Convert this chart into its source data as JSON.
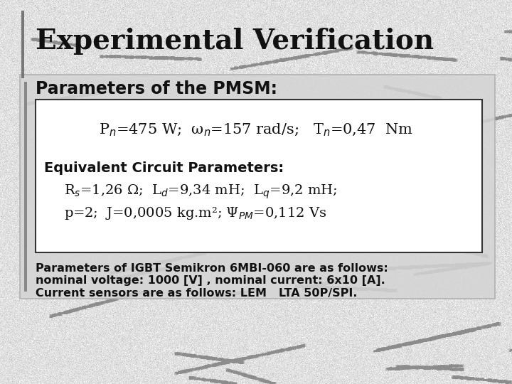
{
  "title": "Experimental Verification",
  "title_fontsize": 28,
  "subtitle_fontsize": 17,
  "body_fontsize": 14,
  "small_fontsize": 11.5,
  "pmsm_header": "Parameters of the PMSM:",
  "pmsm_line1": "P$_n$=475 W;  ω$_n$=157 rad/s;   T$_n$=0,47  Nm",
  "equiv_header": "Equivalent Circuit Parameters:",
  "equiv_line1": "R$_s$=1,26 Ω;  L$_d$=9,34 mH;  L$_q$=9,2 mH;",
  "equiv_line2": "p=2;  J=0,0005 kg.m²; Ψ$_{PM}$=0,112 Vs",
  "igbt_line1": "Parameters of IGBT Semikron 6MBI-060 are as follows:",
  "igbt_line2": "nominal voltage: 1000 [V] , nominal current: 6x10 [A].",
  "igbt_line3": "Current sensors are as follows: LEM   LTA 50P/SPI."
}
